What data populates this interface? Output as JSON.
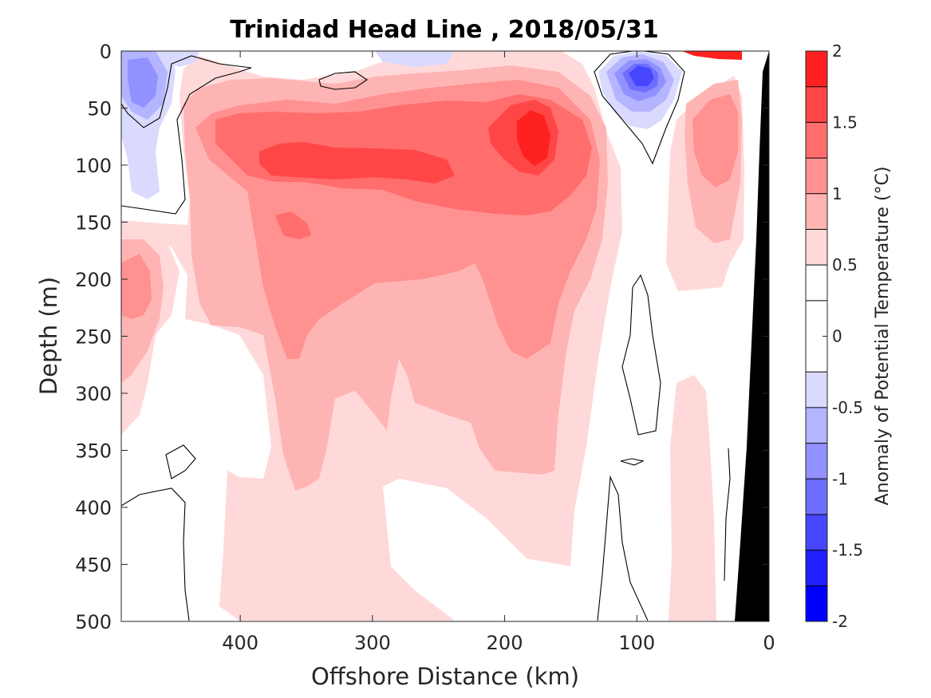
{
  "chart_data": {
    "type": "heatmap",
    "title": "Trinidad Head Line , 2018/05/31",
    "xlabel": "Offshore Distance (km)",
    "ylabel": "Depth (m)",
    "xlim": [
      490,
      0
    ],
    "ylim": [
      0,
      500
    ],
    "x_reversed": true,
    "y_reversed": true,
    "xticks": [
      "400",
      "300",
      "200",
      "100",
      "0"
    ],
    "xtick_values": [
      400,
      300,
      200,
      100,
      0
    ],
    "yticks": [
      "0",
      "50",
      "100",
      "150",
      "200",
      "250",
      "300",
      "350",
      "400",
      "450",
      "500"
    ],
    "ytick_values": [
      0,
      50,
      100,
      150,
      200,
      250,
      300,
      350,
      400,
      450,
      500
    ],
    "colorbar": {
      "label": "Anomaly of Potential Temperature (°C)",
      "range": [
        -2,
        2
      ],
      "levels": [
        -2,
        -1.75,
        -1.5,
        -1.25,
        -1,
        -0.75,
        -0.5,
        -0.25,
        0.25,
        0.5,
        0.75,
        1,
        1.25,
        1.5,
        1.75,
        2
      ],
      "tick_labels": [
        "2",
        "1.5",
        "1",
        "0.5",
        "0",
        "-0.5",
        "-1",
        "-1.5",
        "-2"
      ],
      "tick_values": [
        2,
        1.5,
        1,
        0.5,
        0,
        -0.5,
        -1,
        -1.5,
        -2
      ],
      "colors": [
        "#0000ff",
        "#2020ff",
        "#4646ff",
        "#6d6dff",
        "#9191ff",
        "#b4b4ff",
        "#dadaff",
        "#ffffff",
        "#ffffff",
        "#ffd9d9",
        "#ffb4b4",
        "#ff9191",
        "#ff6d6d",
        "#ff4646",
        "#ff2020",
        "#ff0000"
      ]
    },
    "features": [
      {
        "name": "warm core",
        "distance_km": [
          370,
          140
        ],
        "depth_m": [
          50,
          250
        ],
        "anomaly_c": 1.0
      },
      {
        "name": "warm maximum",
        "distance_km": 178,
        "depth_m": 75,
        "anomaly_c": 1.6
      },
      {
        "name": "cold eddy",
        "distance_km": 95,
        "depth_m": 20,
        "anomaly_c": -1.4
      },
      {
        "name": "cold surface",
        "distance_km": 470,
        "depth_m": 30,
        "anomaly_c": -1.0
      },
      {
        "name": "warm near-shore",
        "distance_km": 35,
        "depth_m": 70,
        "anomaly_c": 1.0
      }
    ],
    "bathymetry": {
      "shelf_distance_km": [
        0,
        25
      ],
      "color": "#000000"
    }
  }
}
